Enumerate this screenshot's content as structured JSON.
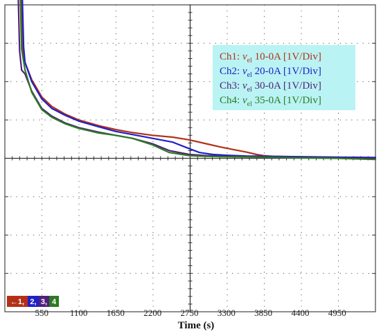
{
  "chart_data": {
    "type": "line",
    "xlabel": "Time (s)",
    "xticks": [
      550,
      1100,
      1650,
      2200,
      2750,
      3300,
      3850,
      4400,
      4950
    ],
    "xlim": [
      0,
      5520
    ],
    "y_divisions": 8,
    "y_unit": "1V/Div",
    "grid": true,
    "legend_position": "top-right",
    "legend_background": "#b9f3f3",
    "channel_marker": {
      "arrow": "←",
      "labels": [
        "1",
        "2",
        "3",
        "4"
      ],
      "separator": ", "
    },
    "series": [
      {
        "name": "Ch1",
        "var": "v",
        "sub": "el",
        "desc": "10-0A [1V/Div]",
        "color": "#b33018",
        "x": [
          0,
          150,
          200,
          230,
          260,
          300,
          400,
          550,
          700,
          900,
          1100,
          1400,
          1650,
          1900,
          2200,
          2500,
          2750,
          3000,
          3200,
          3400,
          3600,
          3750,
          3850,
          4000,
          4300,
          4600,
          4950,
          5200,
          5520
        ],
        "y": [
          6.35,
          6.35,
          6.3,
          5.0,
          2.9,
          2.5,
          2.05,
          1.6,
          1.35,
          1.15,
          1.0,
          0.85,
          0.75,
          0.67,
          0.6,
          0.55,
          0.48,
          0.38,
          0.3,
          0.23,
          0.16,
          0.1,
          0.07,
          0.05,
          0.04,
          0.035,
          0.02,
          0.01,
          0.0
        ]
      },
      {
        "name": "Ch2",
        "var": "v",
        "sub": "el",
        "desc": "20-0A [1V/Div]",
        "color": "#2020c8",
        "x": [
          0,
          170,
          220,
          250,
          280,
          300,
          400,
          550,
          700,
          900,
          1100,
          1400,
          1650,
          1900,
          2200,
          2500,
          2750,
          2900,
          3100,
          3300,
          3600,
          4000,
          4500,
          4950,
          5520
        ],
        "y": [
          6.2,
          6.2,
          6.15,
          4.9,
          2.9,
          2.5,
          2.0,
          1.55,
          1.3,
          1.12,
          0.97,
          0.82,
          0.7,
          0.62,
          0.52,
          0.42,
          0.25,
          0.15,
          0.1,
          0.08,
          0.06,
          0.05,
          0.04,
          0.03,
          0.02
        ]
      },
      {
        "name": "Ch3",
        "var": "v",
        "sub": "el",
        "desc": "30-0A [1V/Div]",
        "color": "#50207a",
        "x": [
          0,
          120,
          160,
          190,
          220,
          250,
          300,
          400,
          550,
          700,
          900,
          1100,
          1400,
          1650,
          1900,
          2200,
          2450,
          2750,
          3000,
          3300,
          3800,
          4400,
          4950,
          5520
        ],
        "y": [
          6.05,
          6.05,
          6.0,
          4.9,
          2.8,
          2.3,
          2.2,
          1.75,
          1.3,
          1.1,
          0.92,
          0.8,
          0.68,
          0.6,
          0.52,
          0.38,
          0.2,
          0.1,
          0.07,
          0.05,
          0.03,
          0.02,
          0.01,
          0.0
        ]
      },
      {
        "name": "Ch4",
        "var": "v",
        "sub": "el",
        "desc": "35-0A [1V/Div]",
        "color": "#2d7a22",
        "x": [
          0,
          140,
          190,
          220,
          250,
          300,
          400,
          550,
          700,
          900,
          1100,
          1400,
          1650,
          1900,
          2200,
          2450,
          2750,
          3000,
          3300,
          3850,
          4400,
          4950,
          5520
        ],
        "y": [
          6.4,
          6.4,
          6.35,
          5.0,
          2.85,
          2.3,
          1.72,
          1.27,
          1.07,
          0.9,
          0.78,
          0.66,
          0.6,
          0.52,
          0.35,
          0.15,
          0.07,
          0.05,
          0.04,
          0.03,
          0.01,
          0.0,
          -0.03
        ]
      }
    ]
  }
}
